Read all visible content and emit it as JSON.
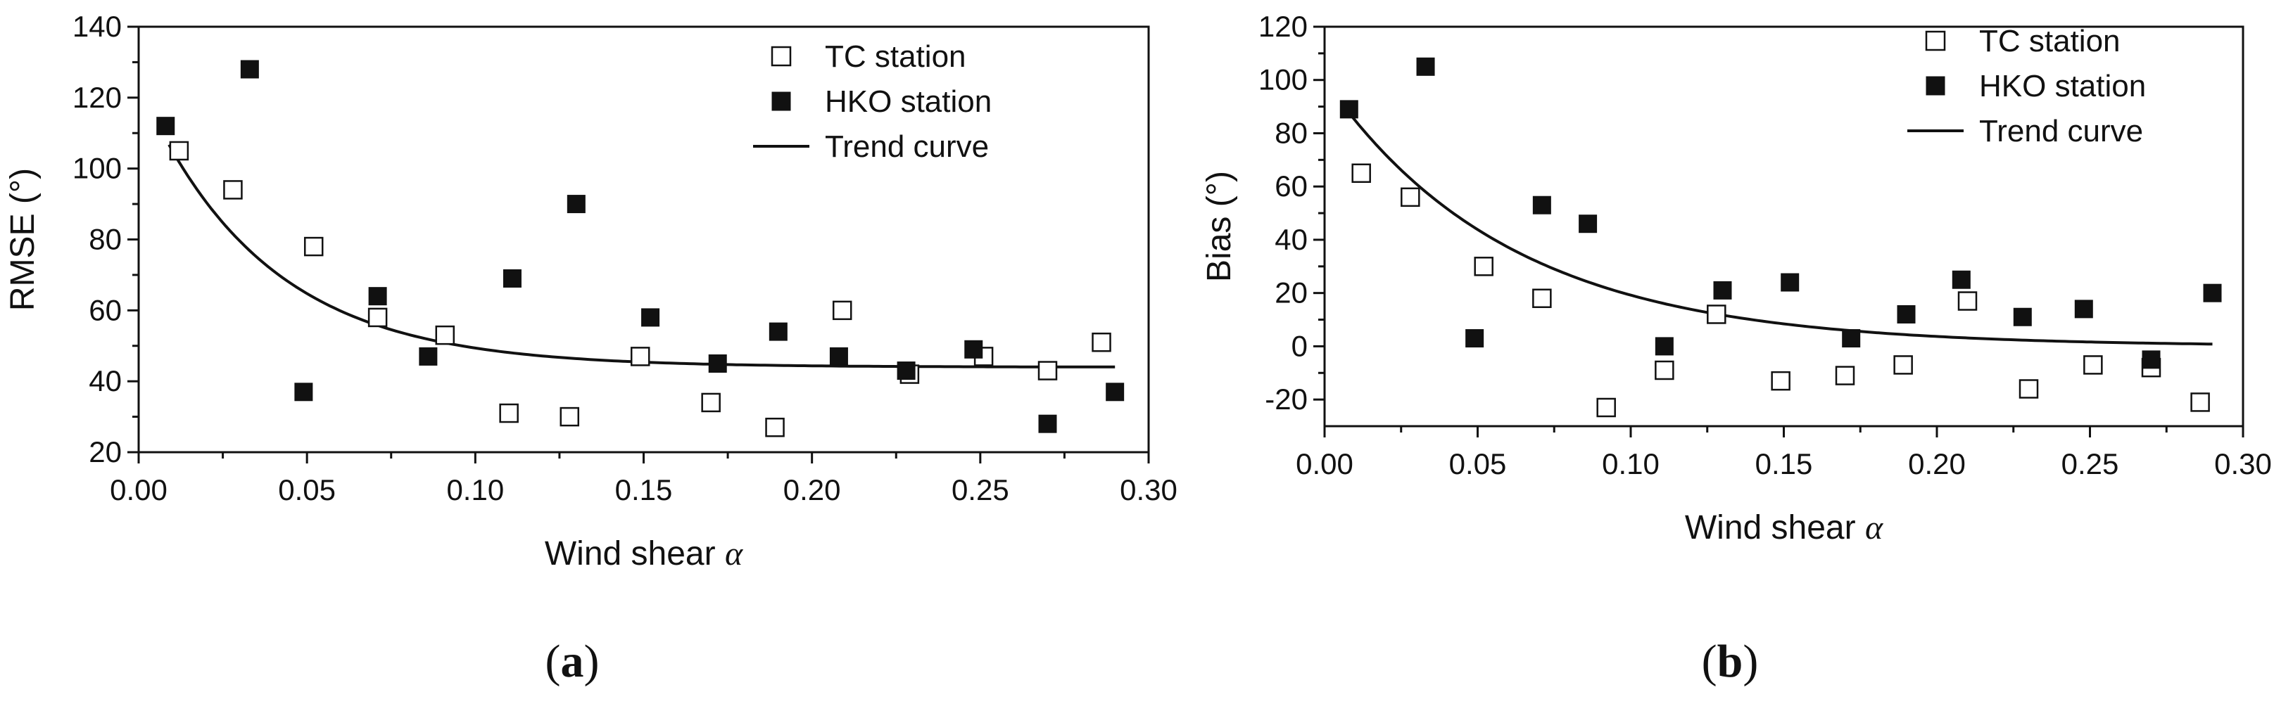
{
  "figure": {
    "panels": [
      {
        "label": "a"
      },
      {
        "label": "b"
      }
    ]
  },
  "chart_data": [
    {
      "type": "scatter",
      "panel": "a",
      "title": "",
      "xlabel": "Wind shear",
      "xlabel_symbol": "α",
      "ylabel": "RMSE (°)",
      "xlim": [
        0.0,
        0.3
      ],
      "ylim": [
        20,
        140
      ],
      "xticks": [
        0.0,
        0.05,
        0.1,
        0.15,
        0.2,
        0.25,
        0.3
      ],
      "xtick_labels": [
        "0.00",
        "0.05",
        "0.10",
        "0.15",
        "0.20",
        "0.25",
        "0.30"
      ],
      "yticks": [
        20,
        40,
        60,
        80,
        100,
        120,
        140
      ],
      "ytick_labels": [
        "20",
        "40",
        "60",
        "80",
        "100",
        "120",
        "140"
      ],
      "legend_position": "top-right",
      "series": [
        {
          "name": "TC station",
          "marker": "open-square",
          "x": [
            0.012,
            0.028,
            0.052,
            0.071,
            0.091,
            0.11,
            0.128,
            0.149,
            0.17,
            0.189,
            0.209,
            0.229,
            0.251,
            0.27,
            0.286
          ],
          "y": [
            105,
            94,
            78,
            58,
            53,
            31,
            30,
            47,
            34,
            27,
            60,
            42,
            47,
            43,
            51
          ]
        },
        {
          "name": "HKO station",
          "marker": "filled-square",
          "x": [
            0.008,
            0.033,
            0.049,
            0.071,
            0.086,
            0.111,
            0.13,
            0.152,
            0.172,
            0.19,
            0.208,
            0.228,
            0.248,
            0.27,
            0.29
          ],
          "y": [
            112,
            128,
            37,
            64,
            47,
            69,
            90,
            58,
            45,
            54,
            47,
            43,
            49,
            28,
            37
          ]
        },
        {
          "name": "Trend curve",
          "marker": "line",
          "model": {
            "a": 44,
            "b": 80,
            "k": 27
          },
          "x_range": [
            0.009,
            0.29
          ]
        }
      ]
    },
    {
      "type": "scatter",
      "panel": "b",
      "title": "",
      "xlabel": "Wind shear",
      "xlabel_symbol": "α",
      "ylabel": "Bias (°)",
      "xlim": [
        0.0,
        0.3
      ],
      "ylim": [
        -30,
        120
      ],
      "xticks": [
        0.0,
        0.05,
        0.1,
        0.15,
        0.2,
        0.25,
        0.3
      ],
      "xtick_labels": [
        "0.00",
        "0.05",
        "0.10",
        "0.15",
        "0.20",
        "0.25",
        "0.30"
      ],
      "yticks": [
        -20,
        0,
        20,
        40,
        60,
        80,
        100,
        120
      ],
      "ytick_labels": [
        "-20",
        "0",
        "20",
        "40",
        "60",
        "80",
        "100",
        "120"
      ],
      "legend_position": "top-right",
      "series": [
        {
          "name": "TC station",
          "marker": "open-square",
          "x": [
            0.012,
            0.028,
            0.052,
            0.071,
            0.092,
            0.111,
            0.128,
            0.149,
            0.17,
            0.189,
            0.21,
            0.23,
            0.251,
            0.27,
            0.286
          ],
          "y": [
            65,
            56,
            30,
            18,
            -23,
            -9,
            12,
            -13,
            -11,
            -7,
            17,
            -16,
            -7,
            -8,
            -21
          ]
        },
        {
          "name": "HKO station",
          "marker": "filled-square",
          "x": [
            0.008,
            0.033,
            0.049,
            0.071,
            0.086,
            0.111,
            0.13,
            0.152,
            0.172,
            0.19,
            0.208,
            0.228,
            0.248,
            0.27,
            0.29
          ],
          "y": [
            89,
            105,
            3,
            53,
            46,
            0,
            21,
            24,
            3,
            12,
            25,
            11,
            14,
            -5,
            20
          ]
        },
        {
          "name": "Trend curve",
          "marker": "line",
          "model": {
            "a": 0,
            "b": 100,
            "k": 16.5
          },
          "x_range": [
            0.007,
            0.29
          ]
        }
      ]
    }
  ]
}
